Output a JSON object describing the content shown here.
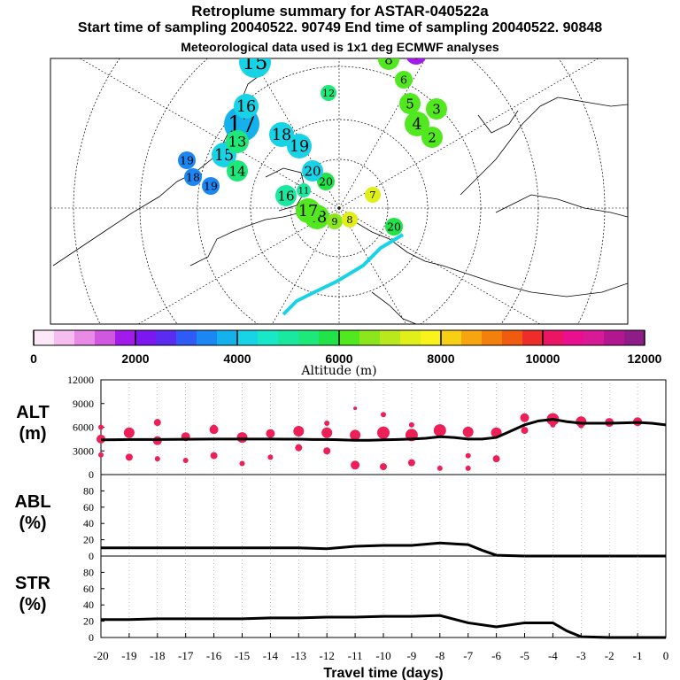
{
  "header": {
    "title": "Retroplume summary for ASTAR-040522a",
    "sampling": "Start time of sampling 20040522. 90749     End time of sampling 20040522. 90848",
    "met": "Meteorological data used is 1x1 deg ECMWF analyses"
  },
  "colorbar": {
    "colors": [
      "#fde8f8",
      "#f6bdf0",
      "#e98ae6",
      "#d058e0",
      "#a21be8",
      "#7d17f0",
      "#5b2cf0",
      "#2f5bf5",
      "#1c86f2",
      "#15b1ec",
      "#18d3e6",
      "#19e8c8",
      "#1ae8a0",
      "#1ee87a",
      "#22e24a",
      "#51e81f",
      "#8be61d",
      "#b9e81e",
      "#e0ee1a",
      "#f8f41b",
      "#f7cf14",
      "#f6a410",
      "#f3800d",
      "#ef5b0f",
      "#ec2d2a",
      "#ea1664",
      "#e90f8e",
      "#d81a96",
      "#b3178f",
      "#8e1d88"
    ],
    "ticks": [
      "0",
      "2000",
      "4000",
      "6000",
      "8000",
      "10000",
      "12000"
    ],
    "label": "Altitude (m)"
  },
  "map": {
    "clusters": [
      {
        "n": "20",
        "size": 10,
        "color": "#22e24a",
        "x": 62,
        "y": 21
      },
      {
        "n": "20",
        "size": 10,
        "color": "#22e24a",
        "x": -15,
        "y": -30
      },
      {
        "n": "20",
        "size": 12,
        "color": "#18d3e6",
        "x": -30,
        "y": -42
      },
      {
        "n": "19",
        "size": 10,
        "color": "#1c86f2",
        "x": -145,
        "y": -25
      },
      {
        "n": "19",
        "size": 10,
        "color": "#1c86f2",
        "x": -172,
        "y": -54
      },
      {
        "n": "19",
        "size": 14,
        "color": "#18d3e6",
        "x": -45,
        "y": -70
      },
      {
        "n": "18",
        "size": 10,
        "color": "#1c86f2",
        "x": -165,
        "y": -35
      },
      {
        "n": "18",
        "size": 14,
        "color": "#18d3e6",
        "x": -65,
        "y": -83
      },
      {
        "n": "18",
        "size": 14,
        "color": "#51e81f",
        "x": -25,
        "y": 10
      },
      {
        "n": "17",
        "size": 20,
        "color": "#15b1ec",
        "x": -110,
        "y": -95
      },
      {
        "n": "17",
        "size": 14,
        "color": "#51e81f",
        "x": -35,
        "y": 3
      },
      {
        "n": "16",
        "size": 12,
        "color": "#1ae8a0",
        "x": -60,
        "y": -14
      },
      {
        "n": "16",
        "size": 14,
        "color": "#18d3e6",
        "x": -105,
        "y": -115
      },
      {
        "n": "15",
        "size": 14,
        "color": "#18d3e6",
        "x": -130,
        "y": -60
      },
      {
        "n": "15",
        "size": 18,
        "color": "#18d3e6",
        "x": -95,
        "y": -165
      },
      {
        "n": "14",
        "size": 12,
        "color": "#1ee87a",
        "x": -115,
        "y": -42
      },
      {
        "n": "13",
        "size": 13,
        "color": "#1ee87a",
        "x": -115,
        "y": -75
      },
      {
        "n": "12",
        "size": 9,
        "color": "#1ee87a",
        "x": -12,
        "y": -130
      },
      {
        "n": "11",
        "size": 8,
        "color": "#1ae8a0",
        "x": -40,
        "y": -20
      },
      {
        "n": "10",
        "size": 18,
        "color": "#18d3e6",
        "x": -53,
        "y": -200
      },
      {
        "n": "9",
        "size": 9,
        "color": "#8be61d",
        "x": -5,
        "y": 15
      },
      {
        "n": "8",
        "size": 9,
        "color": "#e0ee1a",
        "x": 12,
        "y": 13
      },
      {
        "n": "8",
        "size": 12,
        "color": "#51e81f",
        "x": 56,
        "y": -168
      },
      {
        "n": "7",
        "size": 9,
        "color": "#e0ee1a",
        "x": 38,
        "y": -15
      },
      {
        "n": "6",
        "size": 12,
        "color": "#a21be8",
        "x": 87,
        "y": -174
      },
      {
        "n": "6",
        "size": 10,
        "color": "#51e81f",
        "x": 73,
        "y": -145
      },
      {
        "n": "5",
        "size": 12,
        "color": "#51e81f",
        "x": 80,
        "y": -118
      },
      {
        "n": "4",
        "size": 14,
        "color": "#51e81f",
        "x": 88,
        "y": -95
      },
      {
        "n": "3",
        "size": 12,
        "color": "#51e81f",
        "x": 110,
        "y": -112
      },
      {
        "n": "2",
        "size": 12,
        "color": "#51e81f",
        "x": 105,
        "y": -80
      }
    ]
  },
  "chart_data": [
    {
      "type": "scatter",
      "panel": "ALT",
      "ylabel_line1": "ALT",
      "ylabel_line2": "(m)",
      "ylim": [
        0,
        12000
      ],
      "yticks": [
        "0",
        "3000",
        "6000",
        "9000",
        "12000"
      ],
      "x": [
        -20,
        -19.5,
        -19,
        -18.5,
        -18,
        -17.5,
        -17,
        -16.5,
        -16,
        -15.5,
        -15,
        -14.5,
        -14,
        -13.5,
        -13,
        -12.5,
        -12,
        -11.5,
        -11,
        -10.5,
        -10,
        -9.5,
        -9,
        -8.5,
        -8,
        -7.5,
        -7,
        -6.5,
        -6,
        -5.5,
        -5,
        -4.5,
        -4,
        -3.5,
        -3,
        -2.5,
        -2,
        -1.5,
        -1,
        -0.5,
        0
      ],
      "mean_altitude": [
        4400,
        4420,
        4450,
        4450,
        4450,
        4460,
        4470,
        4480,
        4500,
        4500,
        4500,
        4500,
        4500,
        4480,
        4480,
        4450,
        4450,
        4400,
        4350,
        4350,
        4400,
        4450,
        4500,
        4600,
        4800,
        4700,
        4500,
        4500,
        4700,
        5500,
        6300,
        6800,
        7000,
        6700,
        6500,
        6500,
        6500,
        6550,
        6600,
        6500,
        6300
      ],
      "dots": [
        {
          "x": -20,
          "y": 4500,
          "s": 5
        },
        {
          "x": -20,
          "y": 6000,
          "s": 3
        },
        {
          "x": -20,
          "y": 2500,
          "s": 3
        },
        {
          "x": -19,
          "y": 5300,
          "s": 6
        },
        {
          "x": -19,
          "y": 2200,
          "s": 4
        },
        {
          "x": -18,
          "y": 4300,
          "s": 5
        },
        {
          "x": -18,
          "y": 6600,
          "s": 4
        },
        {
          "x": -18,
          "y": 2000,
          "s": 3
        },
        {
          "x": -17,
          "y": 4800,
          "s": 5
        },
        {
          "x": -17,
          "y": 1800,
          "s": 3
        },
        {
          "x": -16,
          "y": 5700,
          "s": 5
        },
        {
          "x": -16,
          "y": 2400,
          "s": 4
        },
        {
          "x": -16,
          "y": 6000,
          "s": 3
        },
        {
          "x": -15,
          "y": 4700,
          "s": 6
        },
        {
          "x": -15,
          "y": 1400,
          "s": 3
        },
        {
          "x": -14,
          "y": 5200,
          "s": 5
        },
        {
          "x": -14,
          "y": 2200,
          "s": 3
        },
        {
          "x": -13,
          "y": 5500,
          "s": 6
        },
        {
          "x": -13,
          "y": 3400,
          "s": 4
        },
        {
          "x": -12,
          "y": 5300,
          "s": 6
        },
        {
          "x": -12,
          "y": 3000,
          "s": 4
        },
        {
          "x": -12,
          "y": 6500,
          "s": 3
        },
        {
          "x": -11,
          "y": 5000,
          "s": 6
        },
        {
          "x": -11,
          "y": 1200,
          "s": 5
        },
        {
          "x": -11,
          "y": 8400,
          "s": 2
        },
        {
          "x": -10,
          "y": 5300,
          "s": 7
        },
        {
          "x": -10,
          "y": 1000,
          "s": 4
        },
        {
          "x": -10,
          "y": 7600,
          "s": 3
        },
        {
          "x": -9,
          "y": 5000,
          "s": 7
        },
        {
          "x": -9,
          "y": 1500,
          "s": 4
        },
        {
          "x": -9,
          "y": 6300,
          "s": 3
        },
        {
          "x": -8,
          "y": 5600,
          "s": 7
        },
        {
          "x": -8,
          "y": 800,
          "s": 3
        },
        {
          "x": -7,
          "y": 5400,
          "s": 6
        },
        {
          "x": -7,
          "y": 2400,
          "s": 3
        },
        {
          "x": -7,
          "y": 800,
          "s": 3
        },
        {
          "x": -6,
          "y": 5300,
          "s": 6
        },
        {
          "x": -6,
          "y": 2000,
          "s": 4
        },
        {
          "x": -5,
          "y": 7200,
          "s": 5
        },
        {
          "x": -5,
          "y": 5600,
          "s": 4
        },
        {
          "x": -4,
          "y": 7000,
          "s": 7
        },
        {
          "x": -4,
          "y": 6300,
          "s": 3
        },
        {
          "x": -3,
          "y": 6700,
          "s": 6
        },
        {
          "x": -3,
          "y": 6200,
          "s": 3
        },
        {
          "x": -2,
          "y": 6600,
          "s": 5
        },
        {
          "x": -1,
          "y": 6700,
          "s": 5
        }
      ]
    },
    {
      "type": "line",
      "panel": "ABL",
      "ylabel_line1": "ABL",
      "ylabel_line2": "(%)",
      "ylim": [
        0,
        100
      ],
      "yticks": [
        "0",
        "20",
        "40",
        "60",
        "80"
      ],
      "x": [
        -20,
        -19,
        -18,
        -17,
        -16,
        -15,
        -14,
        -13,
        -12,
        -11,
        -10,
        -9,
        -8,
        -7.5,
        -7,
        -6.5,
        -6,
        -5,
        -4,
        -3,
        -2,
        -1,
        0
      ],
      "values": [
        10,
        10,
        10,
        10,
        10,
        10,
        10,
        10,
        9,
        12,
        13,
        13,
        16,
        15,
        14,
        7,
        1,
        0,
        0,
        0,
        0,
        0,
        0
      ]
    },
    {
      "type": "line",
      "panel": "STR",
      "ylabel_line1": "STR",
      "ylabel_line2": "(%)",
      "ylim": [
        0,
        100
      ],
      "yticks": [
        "0",
        "20",
        "40",
        "60",
        "80"
      ],
      "x": [
        -20,
        -19,
        -18,
        -17,
        -16,
        -15,
        -14,
        -13,
        -12,
        -11,
        -10,
        -9,
        -8,
        -7,
        -6,
        -5,
        -4,
        -3.5,
        -3,
        -2,
        -1,
        0
      ],
      "values": [
        22,
        22,
        23,
        23,
        23,
        23,
        24,
        24,
        25,
        25,
        26,
        26,
        27,
        18,
        13,
        18,
        18,
        8,
        1,
        0,
        0,
        0
      ]
    }
  ],
  "xaxis": {
    "ticks": [
      "-20",
      "-19",
      "-18",
      "-17",
      "-16",
      "-15",
      "-14",
      "-13",
      "-12",
      "-11",
      "-10",
      "-9",
      "-8",
      "-7",
      "-6",
      "-5",
      "-4",
      "-3",
      "-2",
      "-1",
      "0"
    ],
    "label": "Travel time (days)"
  }
}
